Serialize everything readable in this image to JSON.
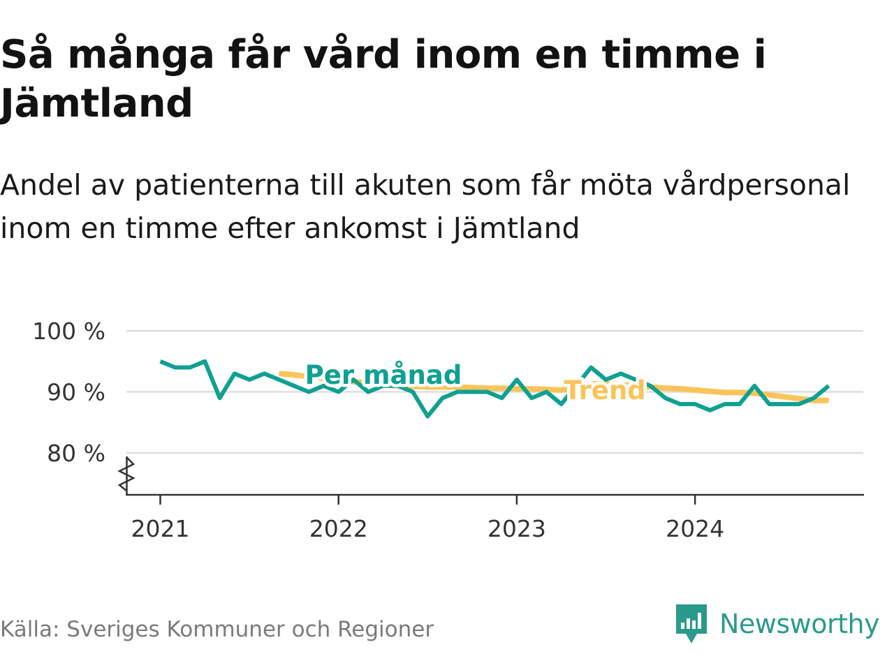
{
  "title": "Så många får vård inom en timme i Jämtland",
  "subtitle": "Andel av patienterna till akuten som får möta vårdpersonal inom en timme efter ankomst i Jämtland",
  "source": "Källa: Sveriges Kommuner och Regioner",
  "brand": {
    "name": "Newsworthy",
    "logo_icon": "bar-chart-speech-bubble-icon"
  },
  "colors": {
    "monthly": "#0fa092",
    "trend": "#fac45a",
    "grid": "#dddddd",
    "axis": "#333333",
    "brand": "#2a9a8c"
  },
  "chart_data": {
    "type": "line",
    "title": "Så många får vård inom en timme i Jämtland",
    "ylim": [
      75,
      100
    ],
    "y_ticks": [
      {
        "value": 100,
        "label": "100 %"
      },
      {
        "value": 90,
        "label": "90 %"
      },
      {
        "value": 80,
        "label": "80 %"
      }
    ],
    "y_axis_break": true,
    "x_ticks": [
      {
        "value": "2021-01",
        "label": "2021"
      },
      {
        "value": "2022-01",
        "label": "2022"
      },
      {
        "value": "2023-01",
        "label": "2023"
      },
      {
        "value": "2024-01",
        "label": "2024"
      }
    ],
    "grid": true,
    "legend": "inline labels",
    "series": [
      {
        "name": "Per månad",
        "key": "monthly",
        "x": [
          "2021-01",
          "2021-02",
          "2021-03",
          "2021-04",
          "2021-05",
          "2021-06",
          "2021-07",
          "2021-08",
          "2021-09",
          "2021-10",
          "2021-11",
          "2021-12",
          "2022-01",
          "2022-02",
          "2022-03",
          "2022-04",
          "2022-05",
          "2022-06",
          "2022-07",
          "2022-08",
          "2022-09",
          "2022-10",
          "2022-11",
          "2022-12",
          "2023-01",
          "2023-02",
          "2023-03",
          "2023-04",
          "2023-05",
          "2023-06",
          "2023-07",
          "2023-08",
          "2023-09",
          "2023-10",
          "2023-11",
          "2023-12",
          "2024-01",
          "2024-02",
          "2024-03",
          "2024-04",
          "2024-05",
          "2024-06",
          "2024-07",
          "2024-08",
          "2024-09",
          "2024-10"
        ],
        "values": [
          95,
          94,
          94,
          95,
          89,
          93,
          92,
          93,
          92,
          91,
          90,
          91,
          90,
          92,
          90,
          91,
          91,
          90,
          86,
          89,
          90,
          90,
          90,
          89,
          92,
          89,
          90,
          88,
          91,
          94,
          92,
          93,
          92,
          91,
          89,
          88,
          88,
          87,
          88,
          88,
          91,
          88,
          88,
          88,
          89,
          91
        ]
      },
      {
        "name": "Trend",
        "key": "trend",
        "x": [
          "2021-09",
          "2021-10",
          "2021-11",
          "2021-12",
          "2022-01",
          "2022-02",
          "2022-03",
          "2022-04",
          "2022-05",
          "2022-06",
          "2022-07",
          "2022-08",
          "2022-09",
          "2022-10",
          "2022-11",
          "2022-12",
          "2023-01",
          "2023-02",
          "2023-03",
          "2023-04",
          "2023-05",
          "2023-06",
          "2023-07",
          "2023-08",
          "2023-09",
          "2023-10",
          "2023-11",
          "2023-12",
          "2024-01",
          "2024-02",
          "2024-03",
          "2024-04",
          "2024-05",
          "2024-06",
          "2024-07",
          "2024-08",
          "2024-09",
          "2024-10"
        ],
        "values": [
          93,
          92.8,
          92.5,
          92.2,
          92,
          91.7,
          91.4,
          91.1,
          91,
          90.9,
          90.8,
          90.8,
          90.8,
          90.7,
          90.6,
          90.6,
          90.5,
          90.5,
          90.4,
          90.3,
          90.8,
          91.3,
          91.3,
          91.2,
          91,
          90.8,
          90.6,
          90.5,
          90.3,
          90.1,
          89.9,
          89.9,
          89.8,
          89.5,
          89.2,
          88.9,
          88.6,
          88.6
        ]
      }
    ]
  }
}
